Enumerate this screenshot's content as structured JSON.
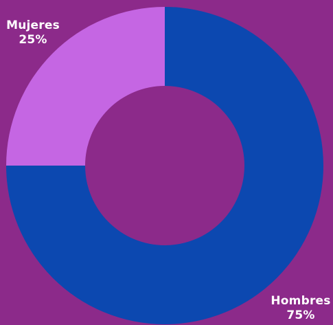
{
  "colors": {
    "background": "#8c2a8a",
    "hombres": "#0c48b0",
    "mujeres": "#c566e3"
  },
  "chart_data": {
    "type": "pie",
    "style": "donut",
    "categories": [
      "Hombres",
      "Mujeres"
    ],
    "values": [
      75,
      25
    ],
    "unit": "%",
    "labels": [
      {
        "name": "Hombres",
        "value_text": "75%"
      },
      {
        "name": "Mujeres",
        "value_text": "25%"
      }
    ],
    "start": "12 o'clock",
    "direction": "clockwise"
  }
}
